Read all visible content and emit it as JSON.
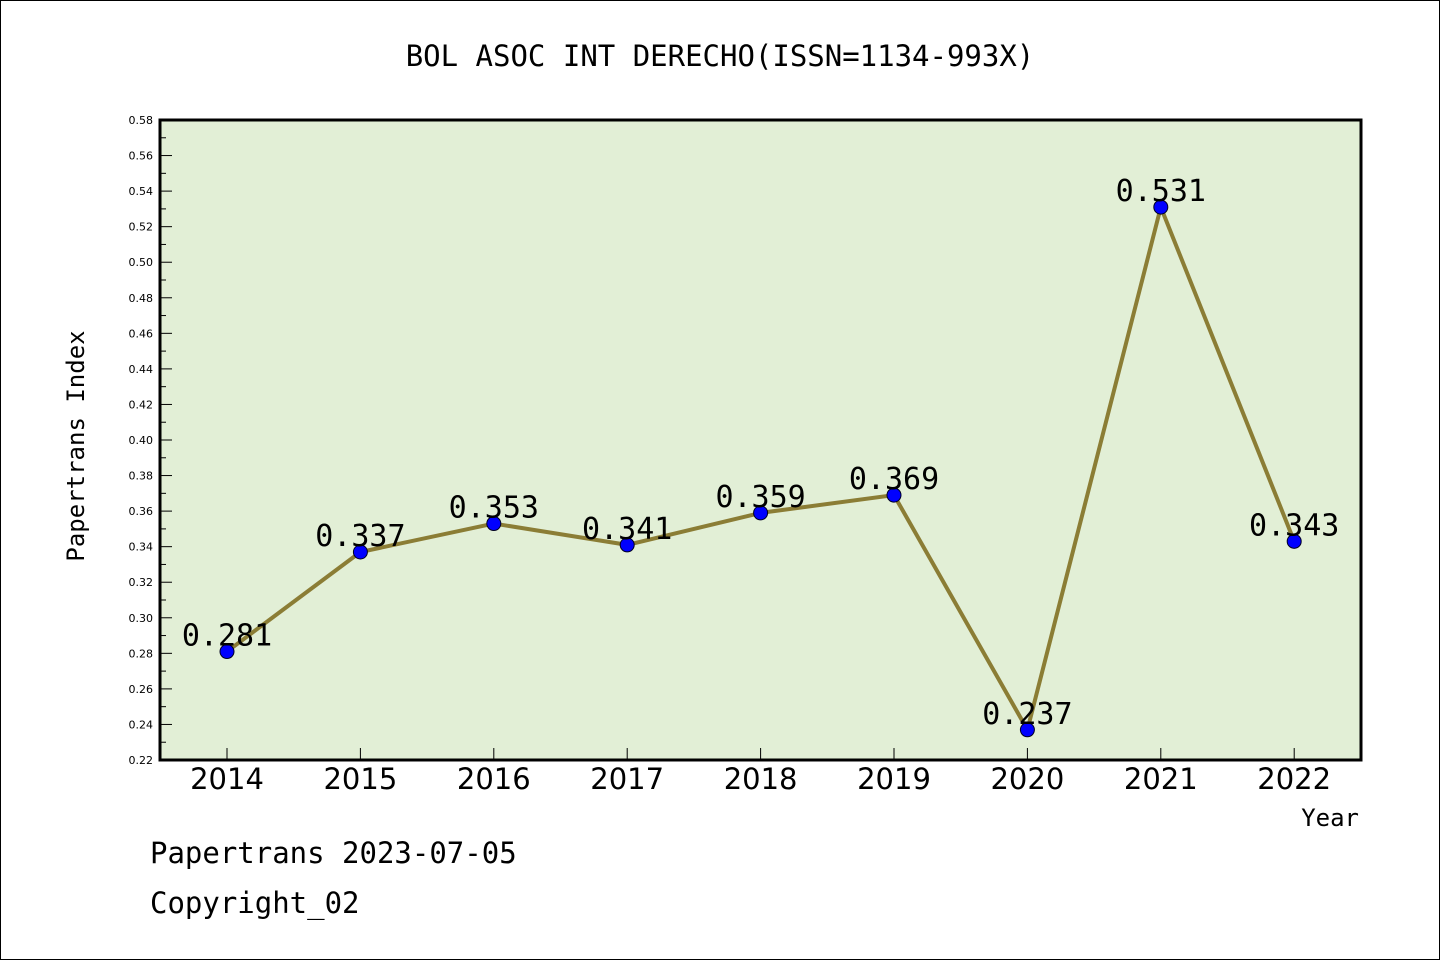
{
  "chart_data": {
    "type": "line",
    "title": "BOL ASOC INT DERECHO(ISSN=1134-993X)",
    "xlabel": "Year",
    "ylabel": "Papertrans Index",
    "categories": [
      "2014",
      "2015",
      "2016",
      "2017",
      "2018",
      "2019",
      "2020",
      "2021",
      "2022"
    ],
    "values": [
      0.281,
      0.337,
      0.353,
      0.341,
      0.359,
      0.369,
      0.237,
      0.531,
      0.343
    ],
    "data_labels": [
      "0.281",
      "0.337",
      "0.353",
      "0.341",
      "0.359",
      "0.369",
      "0.237",
      "0.531",
      "0.343"
    ],
    "ylim": [
      0.22,
      0.58
    ],
    "yticks": [
      "0.22",
      "0.24",
      "0.26",
      "0.28",
      "0.30",
      "0.32",
      "0.34",
      "0.36",
      "0.38",
      "0.40",
      "0.42",
      "0.44",
      "0.46",
      "0.48",
      "0.50",
      "0.52",
      "0.54",
      "0.56",
      "0.58"
    ],
    "grid": false,
    "colors": {
      "plot_background": "#e2efd6",
      "line": "#8b7d35",
      "marker": "#0000ff"
    }
  },
  "footer": {
    "line1": "Papertrans 2023-07-05",
    "line2": "Copyright_02"
  }
}
